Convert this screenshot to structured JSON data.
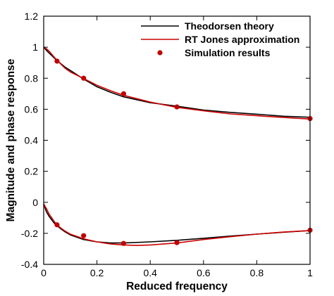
{
  "chart_data": {
    "type": "line",
    "title": "",
    "xlabel": "Reduced frequency",
    "ylabel": "Magnitude and phase response",
    "xlim": [
      0,
      1
    ],
    "ylim": [
      -0.4,
      1.2
    ],
    "x_ticks": [
      0,
      0.2,
      0.4,
      0.6,
      0.8,
      1
    ],
    "x_tick_labels": [
      "0",
      "0.2",
      "0.4",
      "0.6",
      "0.8",
      "1"
    ],
    "y_ticks": [
      -0.4,
      -0.2,
      0,
      0.2,
      0.4,
      0.6,
      0.8,
      1,
      1.2
    ],
    "y_tick_labels": [
      "-0.4",
      "-0.2",
      "0",
      "0.2",
      "0.4",
      "0.6",
      "0.8",
      "1",
      "1.2"
    ],
    "grid": false,
    "legend_position": "top-right",
    "series": [
      {
        "name": "Theodorsen theory",
        "style": "line",
        "color": "#000000",
        "curves": [
          {
            "x": [
              0,
              0.01,
              0.02,
              0.04,
              0.06,
              0.08,
              0.1,
              0.15,
              0.2,
              0.25,
              0.3,
              0.4,
              0.5,
              0.6,
              0.7,
              0.8,
              0.9,
              1.0
            ],
            "y": [
              1.0,
              0.98,
              0.963,
              0.93,
              0.9,
              0.872,
              0.85,
              0.795,
              0.745,
              0.71,
              0.68,
              0.642,
              0.62,
              0.595,
              0.58,
              0.568,
              0.555,
              0.548
            ]
          },
          {
            "x": [
              0,
              0.01,
              0.02,
              0.04,
              0.06,
              0.08,
              0.1,
              0.15,
              0.2,
              0.25,
              0.3,
              0.4,
              0.5,
              0.6,
              0.7,
              0.8,
              0.9,
              1.0
            ],
            "y": [
              -0.01,
              -0.06,
              -0.09,
              -0.135,
              -0.165,
              -0.19,
              -0.21,
              -0.24,
              -0.255,
              -0.262,
              -0.262,
              -0.255,
              -0.245,
              -0.232,
              -0.218,
              -0.205,
              -0.193,
              -0.182
            ]
          }
        ]
      },
      {
        "name": "RT Jones approximation",
        "style": "line",
        "color": "#cc0000",
        "curves": [
          {
            "x": [
              0,
              0.01,
              0.02,
              0.04,
              0.06,
              0.08,
              0.1,
              0.15,
              0.2,
              0.25,
              0.3,
              0.4,
              0.5,
              0.6,
              0.7,
              0.8,
              0.9,
              1.0
            ],
            "y": [
              1.0,
              0.99,
              0.975,
              0.935,
              0.898,
              0.865,
              0.84,
              0.798,
              0.755,
              0.72,
              0.69,
              0.646,
              0.612,
              0.59,
              0.57,
              0.558,
              0.547,
              0.537
            ]
          },
          {
            "x": [
              0,
              0.01,
              0.02,
              0.04,
              0.06,
              0.08,
              0.1,
              0.15,
              0.2,
              0.25,
              0.3,
              0.35,
              0.4,
              0.5,
              0.6,
              0.7,
              0.8,
              0.9,
              1.0
            ],
            "y": [
              -0.01,
              -0.04,
              -0.075,
              -0.125,
              -0.16,
              -0.185,
              -0.205,
              -0.235,
              -0.255,
              -0.268,
              -0.275,
              -0.278,
              -0.275,
              -0.262,
              -0.24,
              -0.222,
              -0.205,
              -0.192,
              -0.182
            ]
          }
        ]
      },
      {
        "name": "Simulation results",
        "style": "markers",
        "color": "#c00000",
        "curves": [
          {
            "x": [
              0.05,
              0.15,
              0.3,
              0.5,
              1.0
            ],
            "y": [
              0.91,
              0.8,
              0.7,
              0.615,
              0.54
            ]
          },
          {
            "x": [
              0.05,
              0.15,
              0.3,
              0.5,
              1.0
            ],
            "y": [
              -0.145,
              -0.215,
              -0.265,
              -0.26,
              -0.18
            ]
          }
        ]
      }
    ]
  }
}
